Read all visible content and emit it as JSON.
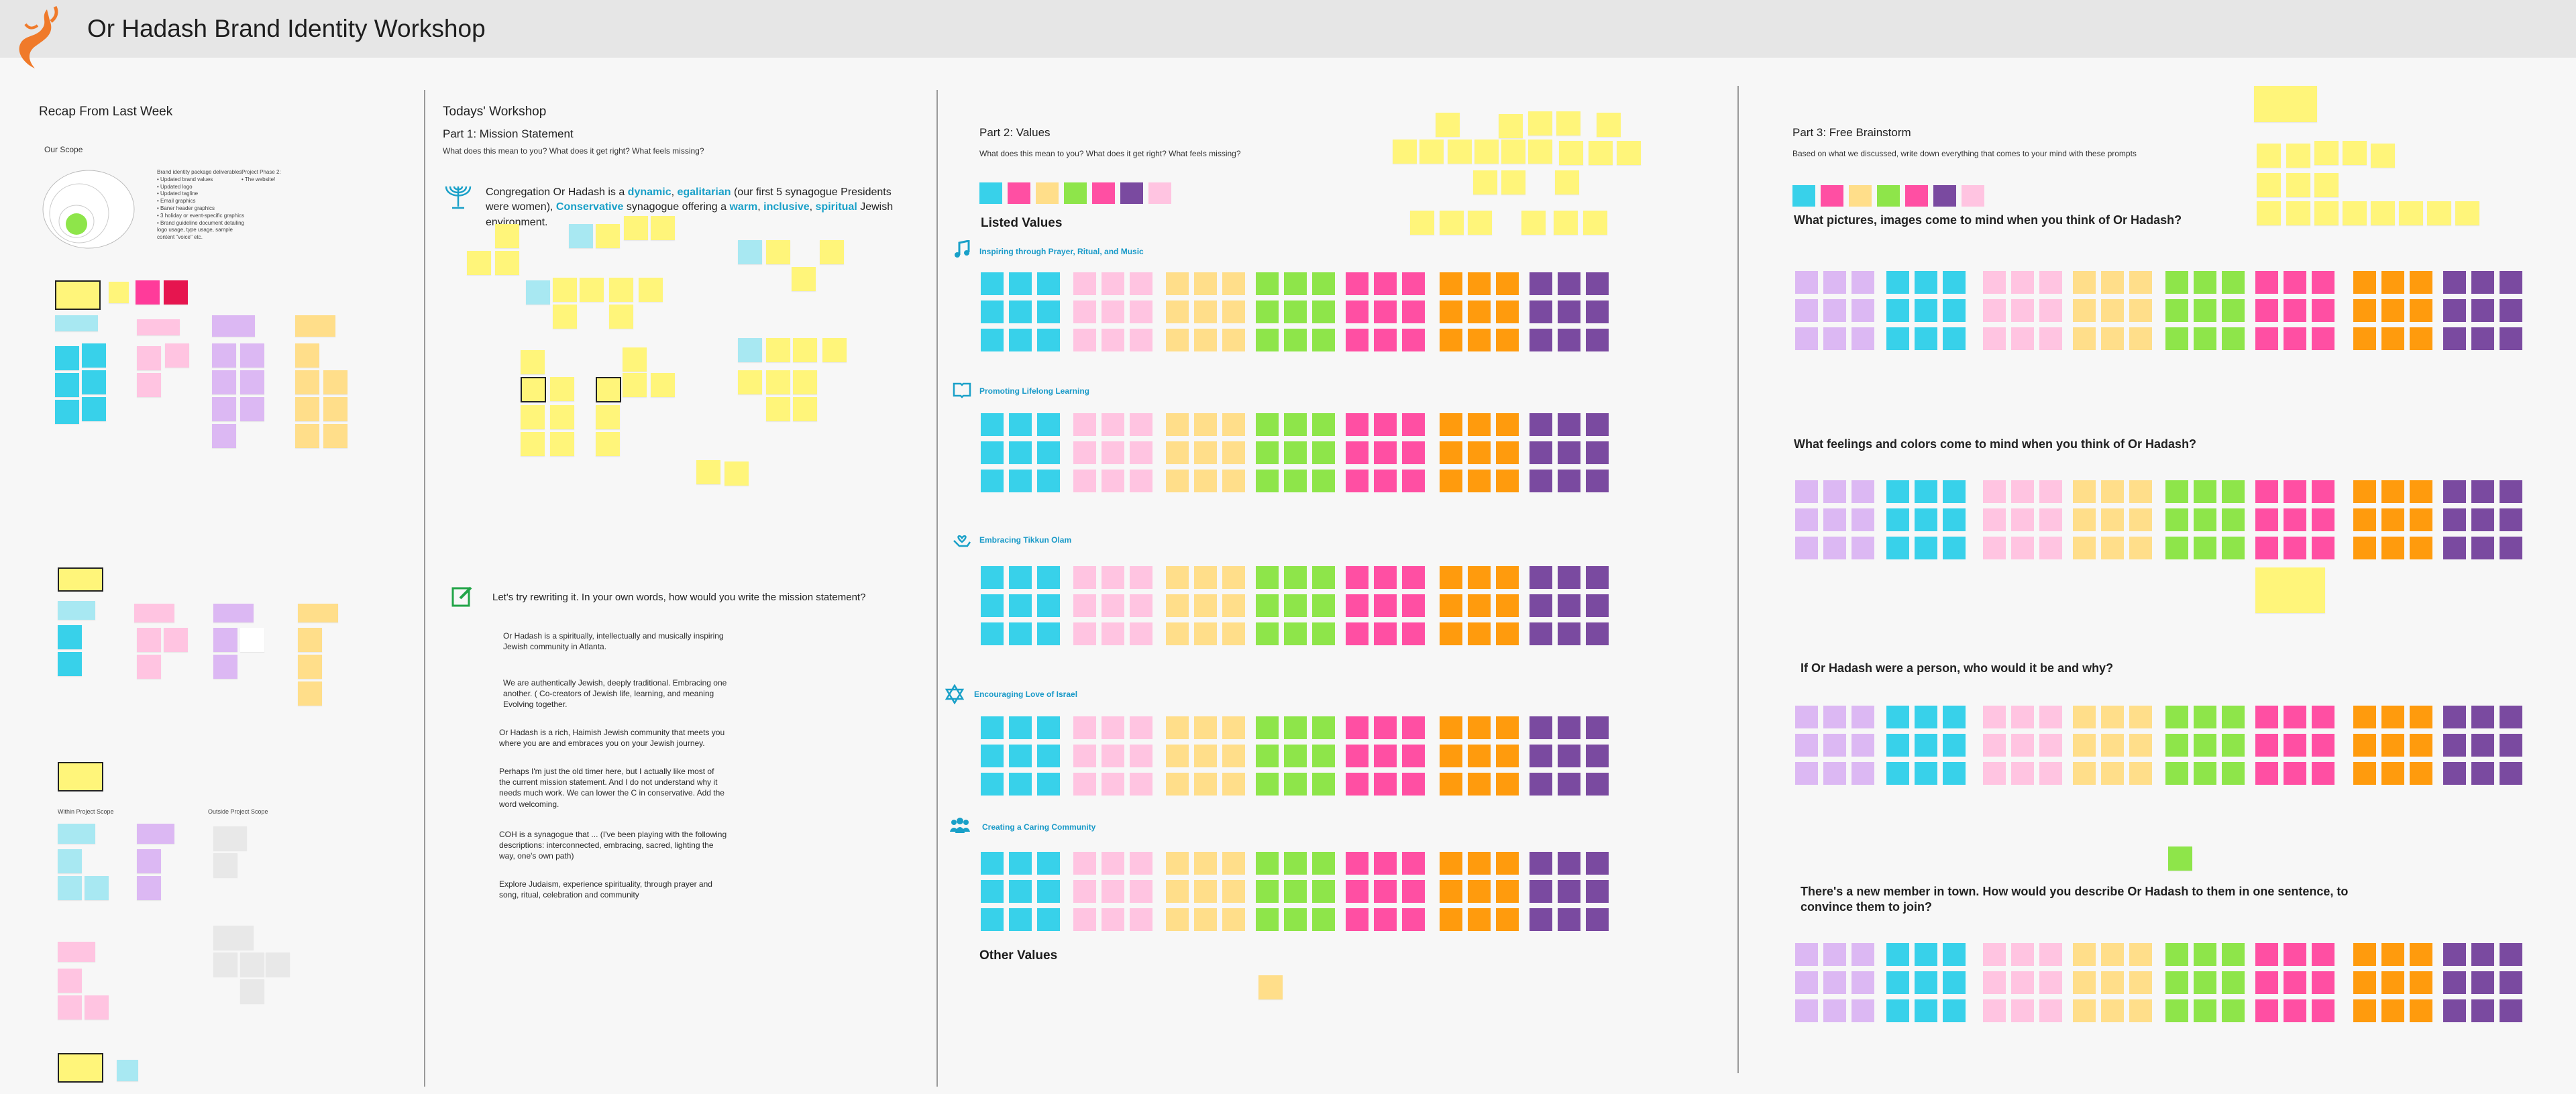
{
  "header": {
    "title": "Or Hadash Brand Identity Workshop"
  },
  "recap": {
    "title": "Recap From Last Week",
    "our_scope": "Our Scope",
    "scope_list": "Brand identity package deliverables:\n• Updated brand values\n• Updated logo\n• Updated tagline\n• Email graphics\n• Baner header graphics\n• 3 holiday or event-specific graphics\n• Brand guideline document detailing logo usage, type usage, sample content \"voice\" etc.",
    "project_phase": "Project Phase 2:\n• The website!",
    "within_scope": "Within Project Scope",
    "outside_scope": "Outside Project Scope"
  },
  "workshop": {
    "title": "Todays' Workshop",
    "part1_title": "Part 1: Mission Statement",
    "part1_prompt": "What does this mean to you? What does it get right? What feels missing?",
    "mission": {
      "t1": "Congregation Or Hadash is a ",
      "dynamic": "dynamic",
      "c1": ", ",
      "egalitarian": "egalitarian",
      "t2": " (our first 5 synagogue Presidents were women), ",
      "conservative": "Conservative",
      "t3": " synagogue offering a ",
      "warm": "warm",
      "c2": ", ",
      "inclusive": "inclusive",
      "c3": ", ",
      "spiritual": "spiritual",
      "t4": " Jewish environment."
    },
    "rewrite_prompt": "Let's try rewriting it. In your own words, how would you write the mission statement?",
    "rewrites": [
      "Or Hadash is a spiritually, intellectually and musically inspiring Jewish community in Atlanta.",
      "We are authentically Jewish, deeply traditional. Embracing one another. ( Co-creators of Jewish life, learning, and meaning  Evolving together.",
      "Or Hadash is a rich, Haimish Jewish community that meets you where you are and embraces you on your Jewish journey.",
      "Perhaps I'm just the old timer here, but I actually like most of the current mission statement. And I do not understand why it needs much work.  We can lower the C in conservative.  Add the word welcoming.",
      "COH is a synagogue that ... (I've been playing with the following descriptions: interconnected, embracing, sacred, lighting the way, one's own path)",
      "Explore Judaism, experience spirituality, through prayer and song, ritual, celebration and community"
    ]
  },
  "values": {
    "title": "Part 2: Values",
    "prompt": "What does this mean to you? What does it get right? What feels missing?",
    "listed": "Listed Values",
    "other": "Other Values",
    "categories": [
      "Inspiring through Prayer, Ritual, and Music",
      "Promoting Lifelong Learning",
      "Embracing Tikkun Olam",
      "Encouraging Love of Israel",
      "Creating a Caring Community"
    ]
  },
  "brainstorm": {
    "title": "Part 3: Free Brainstorm",
    "prompt": "Based on what we discussed, write down everything that comes to your mind with these prompts",
    "questions": [
      "What pictures, images come to mind when you think of Or Hadash?",
      "What feelings and colors come to mind when you think of Or Hadash?",
      "If Or Hadash were a person, who would it be and why?",
      "There's a new member in town. How would you describe Or Hadash to them in one sentence, to convince them to join?"
    ]
  },
  "colors": {
    "cyan": "#38d1ea",
    "pink": "#ff4fa3",
    "lightpink": "#ffc4e1",
    "yellow": "#fff57a",
    "peach": "#ffde8a",
    "green": "#8ee54a",
    "magenta": "#ff3b9a",
    "orange": "#ff9b0d",
    "purple": "#7a4aa0",
    "lavender": "#dcb8f3",
    "lightcyan": "#a8e8f2",
    "red": "#e6154f",
    "accent": "#19a0c8",
    "logo": "#f07a2a"
  }
}
